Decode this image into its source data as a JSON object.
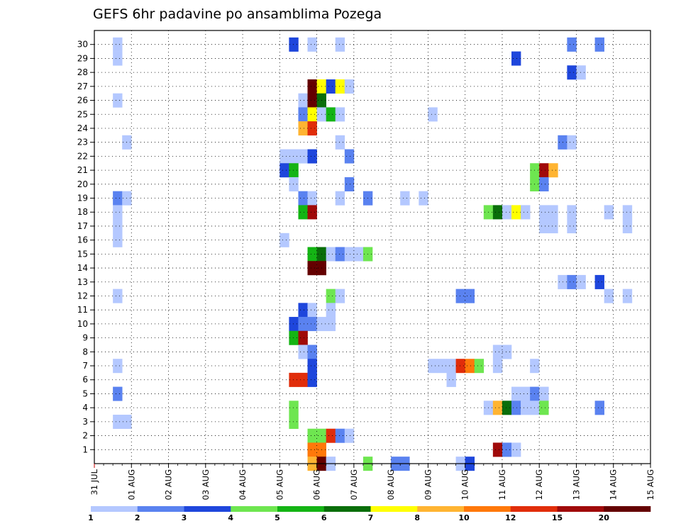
{
  "chart_data": {
    "type": "heatmap",
    "title": "GEFS 6hr padavine po ansamblima Pozega",
    "x_label": "",
    "y_label": "",
    "x_tick_labels": [
      "31 JUL",
      "01 AUG",
      "02 AUG",
      "03 AUG",
      "04 AUG",
      "05 AUG",
      "06 AUG",
      "07 AUG",
      "08 AUG",
      "09 AUG",
      "10 AUG",
      "11 AUG",
      "12 AUG",
      "13 AUG",
      "14 AUG",
      "15 AUG"
    ],
    "y_tick_labels": [
      "1",
      "2",
      "3",
      "4",
      "5",
      "6",
      "7",
      "8",
      "9",
      "10",
      "11",
      "12",
      "13",
      "14",
      "15",
      "16",
      "17",
      "18",
      "19",
      "20",
      "21",
      "22",
      "23",
      "24",
      "25",
      "26",
      "27",
      "28",
      "29",
      "30"
    ],
    "steps_per_day": 4,
    "colorbar": {
      "tick_labels": [
        "1",
        "2",
        "3",
        "4",
        "5",
        "6",
        "7",
        "8",
        "10",
        "12",
        "15",
        "20"
      ],
      "colors": [
        "#b4c8ff",
        "#5a82f0",
        "#1e46dc",
        "#6ee650",
        "#14b414",
        "#0a6e0a",
        "#ffff00",
        "#ffb432",
        "#ff780a",
        "#e12d0a",
        "#a00a0a",
        "#640000"
      ]
    },
    "cells": [
      {
        "m": 30,
        "d": 0.5,
        "c": 0
      },
      {
        "m": 29,
        "d": 0.5,
        "c": 0
      },
      {
        "m": 26,
        "d": 0.5,
        "c": 0
      },
      {
        "m": 23,
        "d": 0.75,
        "c": 0
      },
      {
        "m": 19,
        "d": 0.5,
        "c": 1
      },
      {
        "m": 19,
        "d": 0.75,
        "c": 0
      },
      {
        "m": 18,
        "d": 0.5,
        "c": 0
      },
      {
        "m": 17,
        "d": 0.5,
        "c": 0
      },
      {
        "m": 16,
        "d": 0.5,
        "c": 0
      },
      {
        "m": 12,
        "d": 0.5,
        "c": 0
      },
      {
        "m": 7,
        "d": 0.5,
        "c": 0
      },
      {
        "m": 5,
        "d": 0.5,
        "c": 1
      },
      {
        "m": 3,
        "d": 0.5,
        "c": 0
      },
      {
        "m": 3,
        "d": 0.75,
        "c": 0
      },
      {
        "m": 30,
        "d": 5.25,
        "c": 2
      },
      {
        "m": 30,
        "d": 5.75,
        "c": 0
      },
      {
        "m": 30,
        "d": 6.5,
        "c": 0
      },
      {
        "m": 27,
        "d": 5.75,
        "c": 11
      },
      {
        "m": 27,
        "d": 6.0,
        "c": 6
      },
      {
        "m": 27,
        "d": 6.25,
        "c": 2
      },
      {
        "m": 27,
        "d": 6.5,
        "c": 6
      },
      {
        "m": 27,
        "d": 6.75,
        "c": 0
      },
      {
        "m": 26,
        "d": 5.5,
        "c": 0
      },
      {
        "m": 26,
        "d": 5.75,
        "c": 11
      },
      {
        "m": 26,
        "d": 6.0,
        "c": 5
      },
      {
        "m": 25,
        "d": 5.5,
        "c": 1
      },
      {
        "m": 25,
        "d": 5.75,
        "c": 6
      },
      {
        "m": 25,
        "d": 6.0,
        "c": 0
      },
      {
        "m": 25,
        "d": 6.25,
        "c": 4
      },
      {
        "m": 25,
        "d": 6.5,
        "c": 0
      },
      {
        "m": 24,
        "d": 5.5,
        "c": 7
      },
      {
        "m": 24,
        "d": 5.75,
        "c": 9
      },
      {
        "m": 23,
        "d": 6.5,
        "c": 0
      },
      {
        "m": 22,
        "d": 5.0,
        "c": 0
      },
      {
        "m": 22,
        "d": 5.25,
        "c": 0
      },
      {
        "m": 22,
        "d": 5.5,
        "c": 0
      },
      {
        "m": 22,
        "d": 5.75,
        "c": 2
      },
      {
        "m": 22,
        "d": 6.75,
        "c": 1
      },
      {
        "m": 21,
        "d": 5.0,
        "c": 2
      },
      {
        "m": 21,
        "d": 5.25,
        "c": 4
      },
      {
        "m": 20,
        "d": 5.25,
        "c": 0
      },
      {
        "m": 20,
        "d": 6.75,
        "c": 1
      },
      {
        "m": 19,
        "d": 5.5,
        "c": 1
      },
      {
        "m": 19,
        "d": 5.75,
        "c": 0
      },
      {
        "m": 19,
        "d": 6.5,
        "c": 0
      },
      {
        "m": 19,
        "d": 7.25,
        "c": 1
      },
      {
        "m": 18,
        "d": 5.5,
        "c": 4
      },
      {
        "m": 18,
        "d": 5.75,
        "c": 10
      },
      {
        "m": 16,
        "d": 5.0,
        "c": 0
      },
      {
        "m": 15,
        "d": 5.75,
        "c": 4
      },
      {
        "m": 15,
        "d": 6.0,
        "c": 5
      },
      {
        "m": 15,
        "d": 6.25,
        "c": 0
      },
      {
        "m": 15,
        "d": 6.5,
        "c": 1
      },
      {
        "m": 15,
        "d": 6.75,
        "c": 0
      },
      {
        "m": 15,
        "d": 7.0,
        "c": 0
      },
      {
        "m": 15,
        "d": 7.25,
        "c": 3
      },
      {
        "m": 14,
        "d": 5.75,
        "c": 11
      },
      {
        "m": 14,
        "d": 6.0,
        "c": 11
      },
      {
        "m": 12,
        "d": 6.25,
        "c": 3
      },
      {
        "m": 12,
        "d": 6.5,
        "c": 0
      },
      {
        "m": 11,
        "d": 5.5,
        "c": 2
      },
      {
        "m": 11,
        "d": 5.75,
        "c": 0
      },
      {
        "m": 11,
        "d": 6.25,
        "c": 0
      },
      {
        "m": 10,
        "d": 5.25,
        "c": 2
      },
      {
        "m": 10,
        "d": 5.5,
        "c": 1
      },
      {
        "m": 10,
        "d": 5.75,
        "c": 1
      },
      {
        "m": 10,
        "d": 6.0,
        "c": 0
      },
      {
        "m": 10,
        "d": 6.25,
        "c": 0
      },
      {
        "m": 9,
        "d": 5.25,
        "c": 4
      },
      {
        "m": 9,
        "d": 5.5,
        "c": 10
      },
      {
        "m": 8,
        "d": 5.5,
        "c": 0
      },
      {
        "m": 8,
        "d": 5.75,
        "c": 1
      },
      {
        "m": 7,
        "d": 5.75,
        "c": 2
      },
      {
        "m": 6,
        "d": 5.25,
        "c": 9
      },
      {
        "m": 6,
        "d": 5.5,
        "c": 9
      },
      {
        "m": 6,
        "d": 5.75,
        "c": 2
      },
      {
        "m": 4,
        "d": 5.25,
        "c": 3
      },
      {
        "m": 3,
        "d": 5.25,
        "c": 3
      },
      {
        "m": 2,
        "d": 5.75,
        "c": 3
      },
      {
        "m": 2,
        "d": 6.0,
        "c": 3
      },
      {
        "m": 2,
        "d": 6.25,
        "c": 9
      },
      {
        "m": 2,
        "d": 6.5,
        "c": 1
      },
      {
        "m": 2,
        "d": 6.75,
        "c": 0
      },
      {
        "m": 1,
        "d": 5.75,
        "c": 8
      },
      {
        "m": 1,
        "d": 6.0,
        "c": 8
      },
      {
        "m": 0,
        "d": 5.75,
        "c": 7
      },
      {
        "m": 0,
        "d": 6.0,
        "c": 11
      },
      {
        "m": 0,
        "d": 6.25,
        "c": 0
      },
      {
        "m": 0,
        "d": 7.25,
        "c": 3
      },
      {
        "m": 0,
        "d": 8.0,
        "c": 1
      },
      {
        "m": 0,
        "d": 8.25,
        "c": 1
      },
      {
        "m": 0,
        "d": 9.75,
        "c": 0
      },
      {
        "m": 0,
        "d": 10.0,
        "c": 2
      },
      {
        "m": 19,
        "d": 8.25,
        "c": 0
      },
      {
        "m": 19,
        "d": 8.75,
        "c": 0
      },
      {
        "m": 25,
        "d": 9.0,
        "c": 0
      },
      {
        "m": 12,
        "d": 9.75,
        "c": 1
      },
      {
        "m": 12,
        "d": 10.0,
        "c": 1
      },
      {
        "m": 7,
        "d": 9.0,
        "c": 0
      },
      {
        "m": 7,
        "d": 9.25,
        "c": 0
      },
      {
        "m": 7,
        "d": 9.5,
        "c": 0
      },
      {
        "m": 7,
        "d": 9.75,
        "c": 9
      },
      {
        "m": 7,
        "d": 10.0,
        "c": 8
      },
      {
        "m": 7,
        "d": 10.25,
        "c": 3
      },
      {
        "m": 7,
        "d": 10.75,
        "c": 0
      },
      {
        "m": 6,
        "d": 9.5,
        "c": 0
      },
      {
        "m": 29,
        "d": 11.25,
        "c": 2
      },
      {
        "m": 21,
        "d": 11.75,
        "c": 3
      },
      {
        "m": 21,
        "d": 12.0,
        "c": 10
      },
      {
        "m": 21,
        "d": 12.25,
        "c": 7
      },
      {
        "m": 20,
        "d": 11.75,
        "c": 3
      },
      {
        "m": 20,
        "d": 12.0,
        "c": 1
      },
      {
        "m": 18,
        "d": 10.5,
        "c": 3
      },
      {
        "m": 18,
        "d": 10.75,
        "c": 5
      },
      {
        "m": 18,
        "d": 11.0,
        "c": 0
      },
      {
        "m": 18,
        "d": 11.25,
        "c": 6
      },
      {
        "m": 18,
        "d": 11.5,
        "c": 0
      },
      {
        "m": 18,
        "d": 12.0,
        "c": 0
      },
      {
        "m": 18,
        "d": 12.25,
        "c": 0
      },
      {
        "m": 18,
        "d": 12.75,
        "c": 0
      },
      {
        "m": 18,
        "d": 13.75,
        "c": 0
      },
      {
        "m": 17,
        "d": 12.0,
        "c": 0
      },
      {
        "m": 17,
        "d": 12.25,
        "c": 0
      },
      {
        "m": 17,
        "d": 12.75,
        "c": 0
      },
      {
        "m": 8,
        "d": 10.75,
        "c": 0
      },
      {
        "m": 8,
        "d": 11.0,
        "c": 0
      },
      {
        "m": 7,
        "d": 11.75,
        "c": 0
      },
      {
        "m": 5,
        "d": 11.25,
        "c": 0
      },
      {
        "m": 5,
        "d": 11.5,
        "c": 0
      },
      {
        "m": 5,
        "d": 11.75,
        "c": 1
      },
      {
        "m": 5,
        "d": 12.0,
        "c": 0
      },
      {
        "m": 4,
        "d": 10.5,
        "c": 0
      },
      {
        "m": 4,
        "d": 10.75,
        "c": 7
      },
      {
        "m": 4,
        "d": 11.0,
        "c": 5
      },
      {
        "m": 4,
        "d": 11.25,
        "c": 1
      },
      {
        "m": 4,
        "d": 11.5,
        "c": 0
      },
      {
        "m": 4,
        "d": 11.75,
        "c": 0
      },
      {
        "m": 4,
        "d": 12.0,
        "c": 3
      },
      {
        "m": 1,
        "d": 10.75,
        "c": 10
      },
      {
        "m": 1,
        "d": 11.0,
        "c": 1
      },
      {
        "m": 1,
        "d": 11.25,
        "c": 0
      },
      {
        "m": 30,
        "d": 12.75,
        "c": 1
      },
      {
        "m": 30,
        "d": 13.5,
        "c": 1
      },
      {
        "m": 28,
        "d": 12.75,
        "c": 2
      },
      {
        "m": 28,
        "d": 13.0,
        "c": 0
      },
      {
        "m": 23,
        "d": 12.5,
        "c": 1
      },
      {
        "m": 23,
        "d": 12.75,
        "c": 0
      },
      {
        "m": 13,
        "d": 12.5,
        "c": 0
      },
      {
        "m": 13,
        "d": 12.75,
        "c": 1
      },
      {
        "m": 13,
        "d": 13.0,
        "c": 0
      },
      {
        "m": 13,
        "d": 13.5,
        "c": 2
      },
      {
        "m": 12,
        "d": 13.75,
        "c": 0
      },
      {
        "m": 12,
        "d": 14.25,
        "c": 0
      },
      {
        "m": 17,
        "d": 14.25,
        "c": 0
      },
      {
        "m": 18,
        "d": 14.25,
        "c": 0
      },
      {
        "m": 4,
        "d": 13.5,
        "c": 1
      }
    ]
  }
}
